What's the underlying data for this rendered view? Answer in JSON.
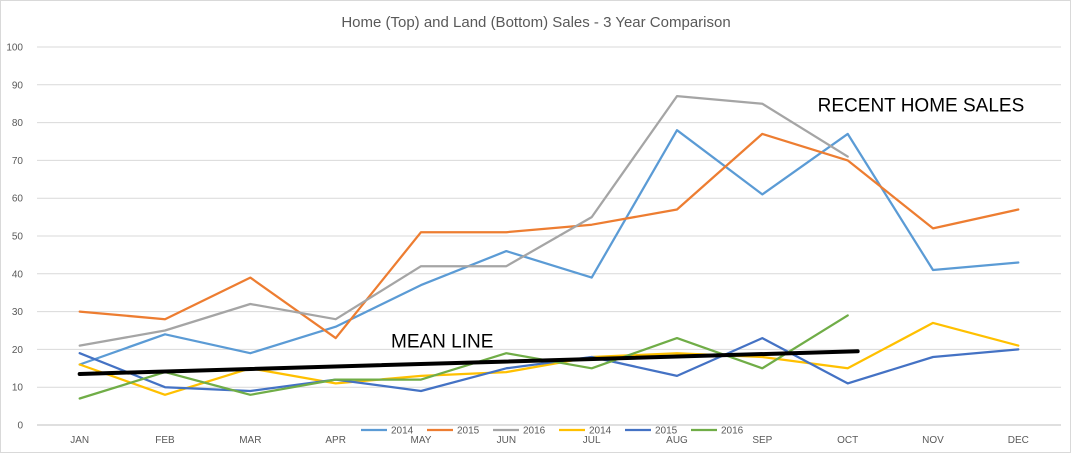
{
  "chart_data": {
    "type": "line",
    "title": "Home (Top) and Land (Bottom) Sales - 3 Year Comparison",
    "xlabel": "",
    "ylabel": "",
    "categories": [
      "JAN",
      "FEB",
      "MAR",
      "APR",
      "MAY",
      "JUN",
      "JUL",
      "AUG",
      "SEP",
      "OCT",
      "NOV",
      "DEC"
    ],
    "ylim": [
      0,
      100
    ],
    "yticks": [
      "0",
      "10",
      "20",
      "30",
      "40",
      "50",
      "60",
      "70",
      "80",
      "90",
      "100"
    ],
    "grid": true,
    "legend_position": "bottom",
    "series": [
      {
        "name": "2014",
        "color": "#5b9bd5",
        "values": [
          16,
          24,
          19,
          26,
          37,
          46,
          39,
          78,
          61,
          77,
          41,
          43
        ]
      },
      {
        "name": "2015",
        "color": "#ed7d31",
        "values": [
          30,
          28,
          39,
          23,
          51,
          51,
          53,
          57,
          77,
          70,
          52,
          57
        ]
      },
      {
        "name": "2016",
        "color": "#a5a5a5",
        "values": [
          21,
          25,
          32,
          28,
          42,
          42,
          55,
          87,
          85,
          71,
          null,
          null
        ]
      },
      {
        "name": "2014",
        "color": "#ffc000",
        "values": [
          16,
          8,
          15,
          11,
          13,
          14,
          18,
          19,
          18,
          15,
          27,
          21
        ]
      },
      {
        "name": "2015",
        "color": "#4472c4",
        "values": [
          19,
          10,
          9,
          12,
          9,
          15,
          18,
          13,
          23,
          11,
          18,
          20
        ]
      },
      {
        "name": "2016",
        "color": "#70ad47",
        "values": [
          7,
          14,
          8,
          12,
          12,
          19,
          15,
          23,
          15,
          29,
          null,
          null
        ]
      }
    ],
    "mean_line": {
      "color": "#000000",
      "start_value": 13.5,
      "end_value": 19.5,
      "start_category": "JAN",
      "end_category": "OCT"
    },
    "annotations": [
      {
        "text": "RECENT HOME SALES",
        "category": "OCT",
        "value": 83
      },
      {
        "text": "MEAN LINE",
        "category": "MAY",
        "value": 20.5
      }
    ]
  }
}
